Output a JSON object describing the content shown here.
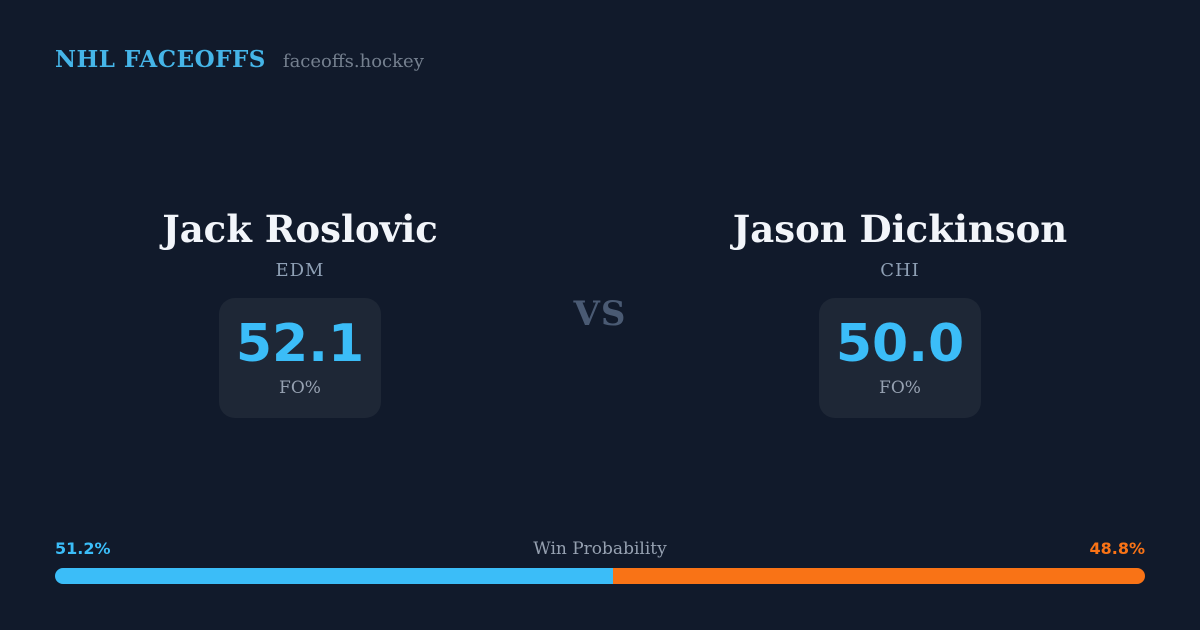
{
  "header": {
    "brand": "NHL FACEOFFS",
    "site": "faceoffs.hockey"
  },
  "matchup": {
    "vs_label": "VS",
    "players": [
      {
        "name": "Jack Roslovic",
        "team": "EDM",
        "stat_value": "52.1",
        "stat_label": "FO%"
      },
      {
        "name": "Jason Dickinson",
        "team": "CHI",
        "stat_value": "50.0",
        "stat_label": "FO%"
      }
    ]
  },
  "win_probability": {
    "title": "Win Probability",
    "left_label": "51.2%",
    "right_label": "48.8%",
    "left_value": 51.2,
    "right_value": 48.8
  },
  "colors": {
    "background": "#111A2B",
    "card": "#1E2736",
    "accent-blue": "#3BBDF8",
    "accent-orange": "#F97316",
    "header-blue": "#45B5E8",
    "name-white": "#F2F5FA",
    "team-gray": "#8FA0B5",
    "label-gray": "#96A1B1",
    "vs-gray": "#4A5A73",
    "muted-gray": "#75808F"
  }
}
